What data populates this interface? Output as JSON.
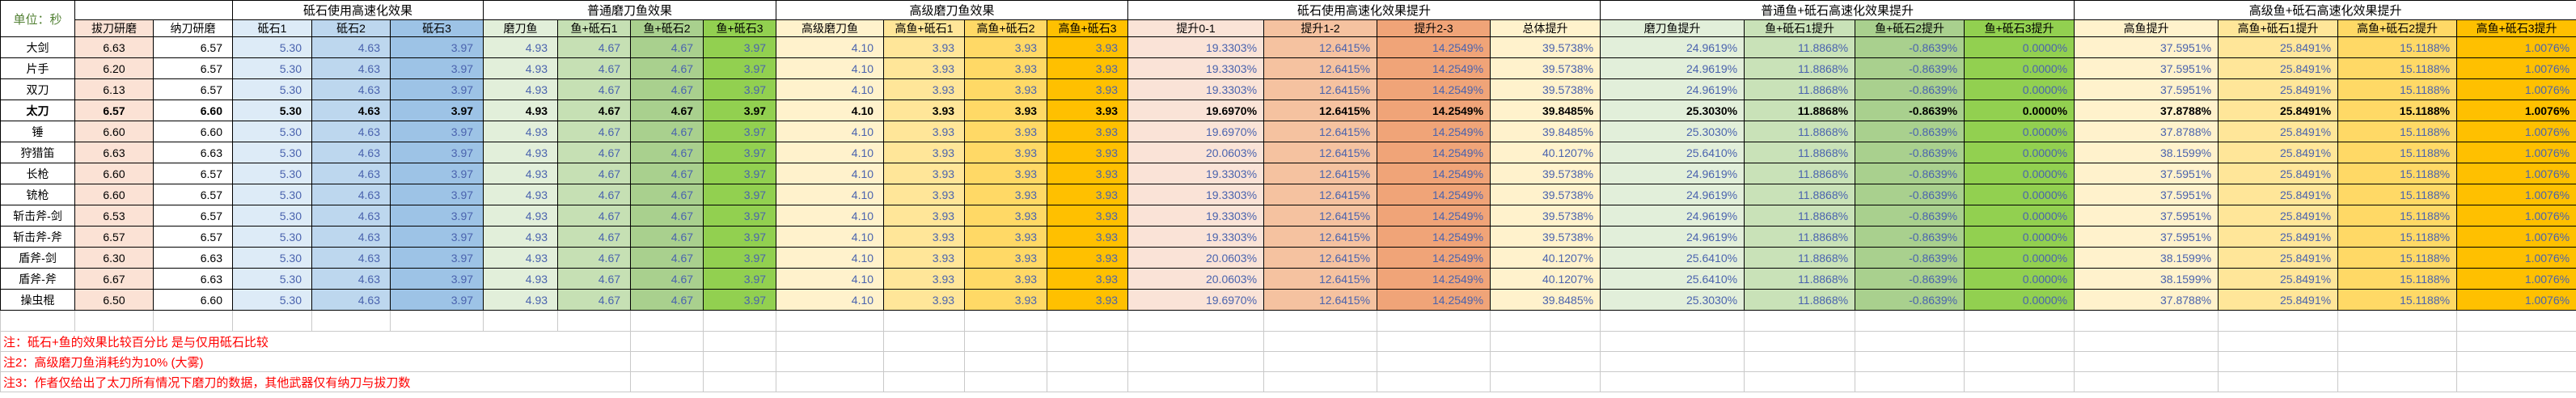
{
  "unit_label": "单位：秒",
  "palette": {
    "value_text": "#4a63ae",
    "bold_text": "#000000",
    "note_text": "#ff0000",
    "unit_text": "#538135",
    "grid_dark": "#000000",
    "grid_light": "#c9c9c9",
    "col_bg": [
      "#FBE2D5",
      "#FFFFFF",
      "#DDEBF7",
      "#BDD7EE",
      "#9DC3E6",
      "#E2EFDA",
      "#C6E0B4",
      "#A9D08E",
      "#92D050",
      "#FFF2CC",
      "#FFE699",
      "#FFD966",
      "#FFC000",
      "#FAE3D7",
      "#F5C2A0",
      "#F0A478",
      "#FFF2CC",
      "#E2EFDA",
      "#C9E2B8",
      "#A9D08E",
      "#92D050",
      "#FFF2CC",
      "#FFE699",
      "#FFD966",
      "#FFC000"
    ]
  },
  "table": {
    "group_headers": [
      {
        "label": "",
        "span": 2
      },
      {
        "label": "砥石使用高速化效果",
        "span": 3
      },
      {
        "label": "普通磨刀鱼效果",
        "span": 4
      },
      {
        "label": "高级磨刀鱼效果",
        "span": 4
      },
      {
        "label": "砥石使用高速化效果提升",
        "span": 4
      },
      {
        "label": "普通鱼+砥石高速化效果提升",
        "span": 4
      },
      {
        "label": "高级鱼+砥石高速化效果提升",
        "span": 4
      }
    ],
    "columns": [
      "拔刀研磨",
      "纳刀研磨",
      "砥石1",
      "砥石2",
      "砥石3",
      "磨刀鱼",
      "鱼+砥石1",
      "鱼+砥石2",
      "鱼+砥石3",
      "高级磨刀鱼",
      "高鱼+砥石1",
      "高鱼+砥石2",
      "高鱼+砥石3",
      "提升0-1",
      "提升1-2",
      "提升2-3",
      "总体提升",
      "磨刀鱼提升",
      "鱼+砥石1提升",
      "鱼+砥石2提升",
      "鱼+砥石3提升",
      "高鱼提升",
      "高鱼+砥石1提升",
      "高鱼+砥石2提升",
      "高鱼+砥石3提升"
    ],
    "rows": [
      {
        "name": "大剑",
        "bold": false,
        "values": [
          "6.63",
          "6.57",
          "5.30",
          "4.63",
          "3.97",
          "4.93",
          "4.67",
          "4.67",
          "3.97",
          "4.10",
          "3.93",
          "3.93",
          "3.93",
          "19.3303%",
          "12.6415%",
          "14.2549%",
          "39.5738%",
          "24.9619%",
          "11.8868%",
          "-0.8639%",
          "0.0000%",
          "37.5951%",
          "25.8491%",
          "15.1188%",
          "1.0076%"
        ]
      },
      {
        "name": "片手",
        "bold": false,
        "values": [
          "6.20",
          "6.57",
          "5.30",
          "4.63",
          "3.97",
          "4.93",
          "4.67",
          "4.67",
          "3.97",
          "4.10",
          "3.93",
          "3.93",
          "3.93",
          "19.3303%",
          "12.6415%",
          "14.2549%",
          "39.5738%",
          "24.9619%",
          "11.8868%",
          "-0.8639%",
          "0.0000%",
          "37.5951%",
          "25.8491%",
          "15.1188%",
          "1.0076%"
        ]
      },
      {
        "name": "双刀",
        "bold": false,
        "values": [
          "6.13",
          "6.57",
          "5.30",
          "4.63",
          "3.97",
          "4.93",
          "4.67",
          "4.67",
          "3.97",
          "4.10",
          "3.93",
          "3.93",
          "3.93",
          "19.3303%",
          "12.6415%",
          "14.2549%",
          "39.5738%",
          "24.9619%",
          "11.8868%",
          "-0.8639%",
          "0.0000%",
          "37.5951%",
          "25.8491%",
          "15.1188%",
          "1.0076%"
        ]
      },
      {
        "name": "太刀",
        "bold": true,
        "values": [
          "6.57",
          "6.60",
          "5.30",
          "4.63",
          "3.97",
          "4.93",
          "4.67",
          "4.67",
          "3.97",
          "4.10",
          "3.93",
          "3.93",
          "3.93",
          "19.6970%",
          "12.6415%",
          "14.2549%",
          "39.8485%",
          "25.3030%",
          "11.8868%",
          "-0.8639%",
          "0.0000%",
          "37.8788%",
          "25.8491%",
          "15.1188%",
          "1.0076%"
        ]
      },
      {
        "name": "锤",
        "bold": false,
        "values": [
          "6.60",
          "6.60",
          "5.30",
          "4.63",
          "3.97",
          "4.93",
          "4.67",
          "4.67",
          "3.97",
          "4.10",
          "3.93",
          "3.93",
          "3.93",
          "19.6970%",
          "12.6415%",
          "14.2549%",
          "39.8485%",
          "25.3030%",
          "11.8868%",
          "-0.8639%",
          "0.0000%",
          "37.8788%",
          "25.8491%",
          "15.1188%",
          "1.0076%"
        ]
      },
      {
        "name": "狩猎笛",
        "bold": false,
        "values": [
          "6.63",
          "6.63",
          "5.30",
          "4.63",
          "3.97",
          "4.93",
          "4.67",
          "4.67",
          "3.97",
          "4.10",
          "3.93",
          "3.93",
          "3.93",
          "20.0603%",
          "12.6415%",
          "14.2549%",
          "40.1207%",
          "25.6410%",
          "11.8868%",
          "-0.8639%",
          "0.0000%",
          "38.1599%",
          "25.8491%",
          "15.1188%",
          "1.0076%"
        ]
      },
      {
        "name": "长枪",
        "bold": false,
        "values": [
          "6.60",
          "6.57",
          "5.30",
          "4.63",
          "3.97",
          "4.93",
          "4.67",
          "4.67",
          "3.97",
          "4.10",
          "3.93",
          "3.93",
          "3.93",
          "19.3303%",
          "12.6415%",
          "14.2549%",
          "39.5738%",
          "24.9619%",
          "11.8868%",
          "-0.8639%",
          "0.0000%",
          "37.5951%",
          "25.8491%",
          "15.1188%",
          "1.0076%"
        ]
      },
      {
        "name": "铳枪",
        "bold": false,
        "values": [
          "6.60",
          "6.57",
          "5.30",
          "4.63",
          "3.97",
          "4.93",
          "4.67",
          "4.67",
          "3.97",
          "4.10",
          "3.93",
          "3.93",
          "3.93",
          "19.3303%",
          "12.6415%",
          "14.2549%",
          "39.5738%",
          "24.9619%",
          "11.8868%",
          "-0.8639%",
          "0.0000%",
          "37.5951%",
          "25.8491%",
          "15.1188%",
          "1.0076%"
        ]
      },
      {
        "name": "斩击斧-剑",
        "bold": false,
        "values": [
          "6.53",
          "6.57",
          "5.30",
          "4.63",
          "3.97",
          "4.93",
          "4.67",
          "4.67",
          "3.97",
          "4.10",
          "3.93",
          "3.93",
          "3.93",
          "19.3303%",
          "12.6415%",
          "14.2549%",
          "39.5738%",
          "24.9619%",
          "11.8868%",
          "-0.8639%",
          "0.0000%",
          "37.5951%",
          "25.8491%",
          "15.1188%",
          "1.0076%"
        ]
      },
      {
        "name": "斩击斧-斧",
        "bold": false,
        "values": [
          "6.57",
          "6.57",
          "5.30",
          "4.63",
          "3.97",
          "4.93",
          "4.67",
          "4.67",
          "3.97",
          "4.10",
          "3.93",
          "3.93",
          "3.93",
          "19.3303%",
          "12.6415%",
          "14.2549%",
          "39.5738%",
          "24.9619%",
          "11.8868%",
          "-0.8639%",
          "0.0000%",
          "37.5951%",
          "25.8491%",
          "15.1188%",
          "1.0076%"
        ]
      },
      {
        "name": "盾斧-剑",
        "bold": false,
        "values": [
          "6.30",
          "6.63",
          "5.30",
          "4.63",
          "3.97",
          "4.93",
          "4.67",
          "4.67",
          "3.97",
          "4.10",
          "3.93",
          "3.93",
          "3.93",
          "20.0603%",
          "12.6415%",
          "14.2549%",
          "40.1207%",
          "25.6410%",
          "11.8868%",
          "-0.8639%",
          "0.0000%",
          "38.1599%",
          "25.8491%",
          "15.1188%",
          "1.0076%"
        ]
      },
      {
        "name": "盾斧-斧",
        "bold": false,
        "values": [
          "6.67",
          "6.63",
          "5.30",
          "4.63",
          "3.97",
          "4.93",
          "4.67",
          "4.67",
          "3.97",
          "4.10",
          "3.93",
          "3.93",
          "3.93",
          "20.0603%",
          "12.6415%",
          "14.2549%",
          "40.1207%",
          "25.6410%",
          "11.8868%",
          "-0.8639%",
          "0.0000%",
          "38.1599%",
          "25.8491%",
          "15.1188%",
          "1.0076%"
        ]
      },
      {
        "name": "操虫棍",
        "bold": false,
        "values": [
          "6.50",
          "6.60",
          "5.30",
          "4.63",
          "3.97",
          "4.93",
          "4.67",
          "4.67",
          "3.97",
          "4.10",
          "3.93",
          "3.93",
          "3.93",
          "19.6970%",
          "12.6415%",
          "14.2549%",
          "39.8485%",
          "25.3030%",
          "11.8868%",
          "-0.8639%",
          "0.0000%",
          "37.8788%",
          "25.8491%",
          "15.1188%",
          "1.0076%"
        ]
      }
    ],
    "notes": [
      "注：砥石+鱼的效果比较百分比 是与仅用砥石比较",
      "注2：高级磨刀鱼消耗约为10% (大雾)",
      "注3：作者仅给出了太刀所有情况下磨刀的数据，其他武器仅有纳刀与拔刀数"
    ]
  }
}
